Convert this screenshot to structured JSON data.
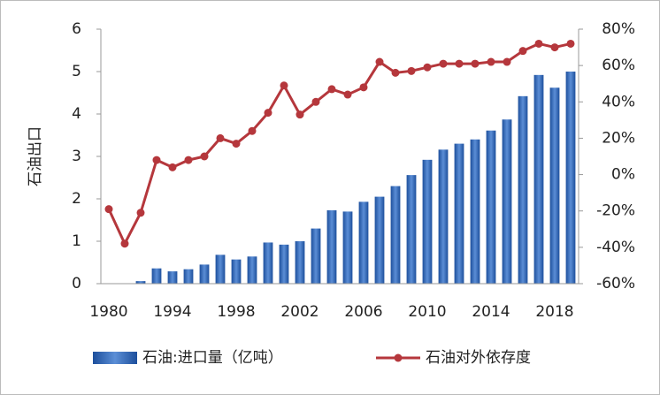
{
  "chart_data": {
    "type": "bar-line",
    "y_label": "石油出口",
    "categories": [
      "1980",
      null,
      null,
      null,
      "1994",
      null,
      null,
      null,
      "1998",
      null,
      null,
      null,
      "2002",
      null,
      null,
      null,
      "2006",
      null,
      null,
      null,
      "2010",
      null,
      null,
      null,
      "2014",
      null,
      null,
      null,
      "2018",
      null
    ],
    "series": [
      {
        "name": "石油:进口量（亿吨）",
        "type": "bar",
        "color": "#2f63b0",
        "values": [
          0,
          0,
          0.06,
          0.36,
          0.29,
          0.34,
          0.45,
          0.68,
          0.57,
          0.64,
          0.97,
          0.92,
          1.0,
          1.3,
          1.73,
          1.7,
          1.93,
          2.05,
          2.3,
          2.56,
          2.92,
          3.16,
          3.3,
          3.4,
          3.61,
          3.87,
          4.42,
          4.92,
          4.62,
          5.0
        ]
      },
      {
        "name": "石油对外依存度",
        "type": "line",
        "axis": "y2",
        "color": "#b5373c",
        "values": [
          -19,
          -38,
          -21,
          8,
          4,
          8,
          10,
          20,
          17,
          24,
          34,
          49,
          33,
          40,
          47,
          44,
          48,
          62,
          56,
          57,
          59,
          61,
          61,
          61,
          62,
          62,
          68,
          72,
          70,
          72
        ]
      }
    ],
    "ylim": [
      0,
      6
    ],
    "yticks": [
      0,
      1,
      2,
      3,
      4,
      5,
      6
    ],
    "y2lim": [
      -60,
      80
    ],
    "y2ticks": [
      {
        "value": -60,
        "label": "-60%"
      },
      {
        "value": -40,
        "label": "-40%"
      },
      {
        "value": -20,
        "label": "-20%"
      },
      {
        "value": 0,
        "label": "0%"
      },
      {
        "value": 20,
        "label": "20%"
      },
      {
        "value": 40,
        "label": "40%"
      },
      {
        "value": 60,
        "label": "60%"
      },
      {
        "value": 80,
        "label": "80%"
      }
    ],
    "legend": "bottom"
  }
}
